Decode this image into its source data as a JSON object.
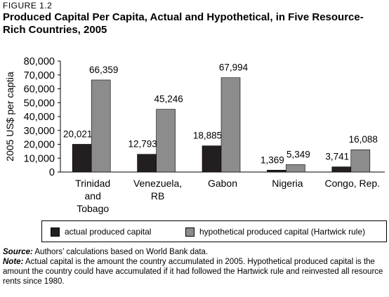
{
  "figure": {
    "label": "FIGURE 1.2",
    "title": "Produced Capital Per Capita, Actual and Hypothetical, in Five Resource-Rich Countries, 2005"
  },
  "chart_data": {
    "type": "bar",
    "title": "Produced Capital Per Capita, Actual and Hypothetical, in Five Resource-Rich Countries, 2005",
    "xlabel": "",
    "ylabel": "2005 US$ per captia",
    "ylim": [
      0,
      80000
    ],
    "yticks": [
      0,
      10000,
      20000,
      30000,
      40000,
      50000,
      60000,
      70000,
      80000
    ],
    "ytick_labels": [
      "0",
      "10,000",
      "20,000",
      "30,000",
      "40,000",
      "50,000",
      "60,000",
      "70,000",
      "80,000"
    ],
    "categories": [
      "Trinidad and Tobago",
      "Venezuela, RB",
      "Gabon",
      "Nigeria",
      "Congo, Rep."
    ],
    "category_lines": [
      [
        "Trinidad",
        "and",
        "Tobago"
      ],
      [
        "Venezuela,",
        "RB"
      ],
      [
        "Gabon"
      ],
      [
        "Nigeria"
      ],
      [
        "Congo, Rep."
      ]
    ],
    "series": [
      {
        "name": "actual produced capital",
        "color": "#231f20",
        "values": [
          20021,
          12793,
          18885,
          1369,
          3741
        ],
        "labels": [
          "20,021",
          "12,793",
          "18,885",
          "1,369",
          "3,741"
        ]
      },
      {
        "name": "hypothetical produced capital (Hartwick rule)",
        "color": "#8c8c8c",
        "values": [
          66359,
          45246,
          67994,
          5349,
          16088
        ],
        "labels": [
          "66,359",
          "45,246",
          "67,994",
          "5,349",
          "16,088"
        ]
      }
    ],
    "grid": false,
    "legend_position": "bottom"
  },
  "notes": {
    "source_label": "Source:",
    "source_text": " Authors’ calculations based on World Bank data.",
    "note_label": "Note:",
    "note_text": " Actual capital is the amount the country accumulated in 2005. Hypothetical produced capital is the amount the country could have accumulated if it had followed the Hartwick rule and reinvested all resource rents since 1980."
  }
}
